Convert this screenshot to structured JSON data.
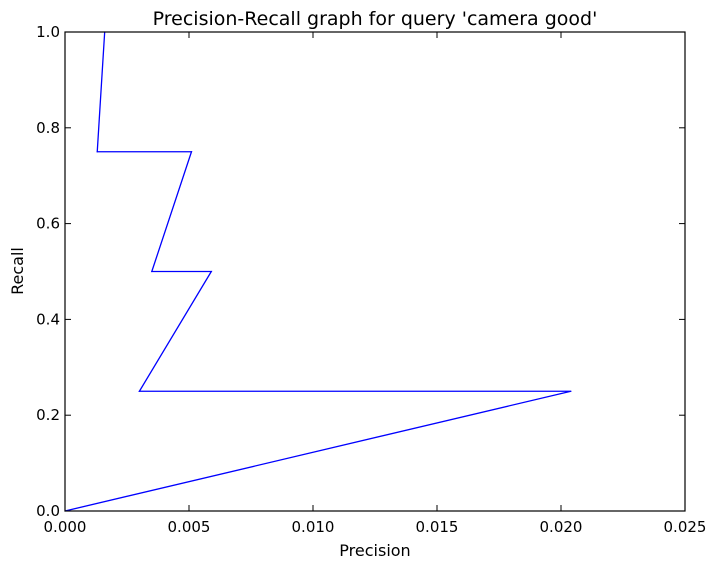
{
  "chart_data": {
    "type": "line",
    "title": "Precision-Recall graph for query 'camera good'",
    "xlabel": "Precision",
    "ylabel": "Recall",
    "xlim": [
      0.0,
      0.025
    ],
    "ylim": [
      0.0,
      1.0
    ],
    "x_ticks": [
      "0.000",
      "0.005",
      "0.010",
      "0.015",
      "0.020",
      "0.025"
    ],
    "x_tick_values": [
      0.0,
      0.005,
      0.01,
      0.015,
      0.02,
      0.025
    ],
    "y_ticks": [
      "0.0",
      "0.2",
      "0.4",
      "0.6",
      "0.8",
      "1.0"
    ],
    "y_tick_values": [
      0.0,
      0.2,
      0.4,
      0.6,
      0.8,
      1.0
    ],
    "grid": false,
    "series": [
      {
        "color": "#0000ff",
        "x": [
          0.0,
          0.0204,
          0.003,
          0.0059,
          0.0035,
          0.0051,
          0.0013,
          0.0016
        ],
        "y": [
          0.0,
          0.25,
          0.25,
          0.5,
          0.5,
          0.75,
          0.75,
          1.0
        ]
      }
    ]
  }
}
